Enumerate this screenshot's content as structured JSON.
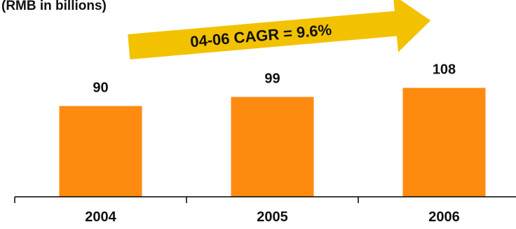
{
  "chart_data": {
    "type": "bar",
    "unit_label": "(RMB in billions)",
    "categories": [
      "2004",
      "2005",
      "2006"
    ],
    "values": [
      90,
      99,
      108
    ],
    "ylim": [
      0,
      115
    ],
    "grid": false,
    "bar_color": "#FF8A10",
    "annotation": {
      "text": "04-06 CAGR = 9.6%",
      "arrow_color": "#F2C200"
    }
  }
}
